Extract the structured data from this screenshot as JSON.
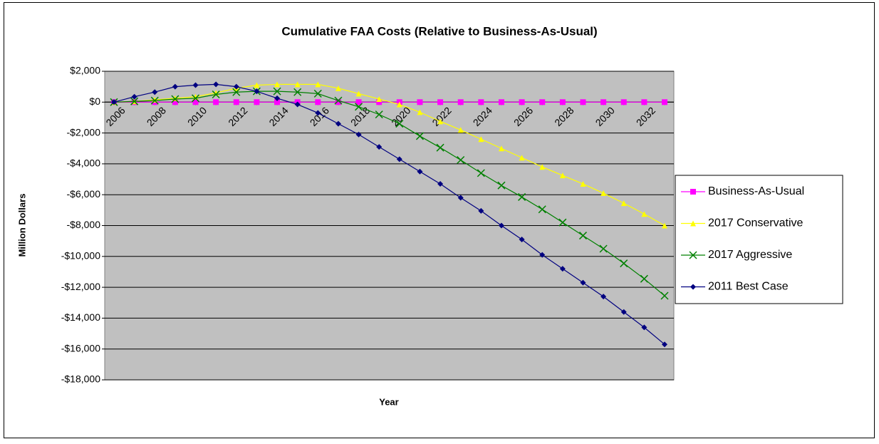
{
  "chart_data": {
    "type": "line",
    "title": "Cumulative FAA Costs (Relative to Business-As-Usual)",
    "x_label": "Year",
    "y_label": "Million Dollars",
    "categories": [
      "2006",
      null,
      "2008",
      null,
      "2010",
      null,
      "2012",
      null,
      "2014",
      null,
      "2016",
      null,
      "2018",
      null,
      "2020",
      null,
      "2022",
      null,
      "2024",
      null,
      "2026",
      null,
      "2028",
      null,
      "2030",
      null,
      "2032",
      null
    ],
    "series": [
      {
        "name": "Business-As-Usual",
        "color": "#ff00ff",
        "marker": "square",
        "values": [
          0,
          0,
          0,
          0,
          0,
          0,
          0,
          0,
          0,
          0,
          0,
          0,
          0,
          0,
          0,
          0,
          0,
          0,
          0,
          0,
          0,
          0,
          0,
          0,
          0,
          0,
          0,
          0
        ]
      },
      {
        "name": "2017 Conservative",
        "color": "#ffff00",
        "marker": "triangle",
        "values": [
          0,
          50,
          150,
          250,
          350,
          600,
          900,
          1100,
          1150,
          1150,
          1150,
          900,
          550,
          200,
          -150,
          -650,
          -1250,
          -1800,
          -2400,
          -3000,
          -3600,
          -4200,
          -4750,
          -5300,
          -5900,
          -6550,
          -7250,
          -8000
        ]
      },
      {
        "name": "2017 Aggressive",
        "color": "#008000",
        "marker": "cross",
        "values": [
          0,
          50,
          100,
          200,
          250,
          500,
          650,
          700,
          700,
          650,
          550,
          100,
          -300,
          -800,
          -1400,
          -2200,
          -2950,
          -3750,
          -4600,
          -5400,
          -6150,
          -6950,
          -7800,
          -8650,
          -9500,
          -10450,
          -11450,
          -12550
        ]
      },
      {
        "name": "2011 Best Case",
        "color": "#000080",
        "marker": "diamond",
        "values": [
          0,
          350,
          650,
          1000,
          1100,
          1150,
          1000,
          700,
          250,
          -150,
          -700,
          -1400,
          -2100,
          -2900,
          -3700,
          -4500,
          -5300,
          -6200,
          -7050,
          -8000,
          -8900,
          -9900,
          -10800,
          -11700,
          -12600,
          -13600,
          -14600,
          -15700
        ]
      }
    ],
    "ylim": [
      -18000,
      2000
    ],
    "yticks": [
      {
        "value": 2000,
        "label": "$2,000"
      },
      {
        "value": 0,
        "label": "$0"
      },
      {
        "value": -2000,
        "label": "-$2,000"
      },
      {
        "value": -4000,
        "label": "-$4,000"
      },
      {
        "value": -6000,
        "label": "-$6,000"
      },
      {
        "value": -8000,
        "label": "-$8,000"
      },
      {
        "value": -10000,
        "label": "-$10,000"
      },
      {
        "value": -12000,
        "label": "-$12,000"
      },
      {
        "value": -14000,
        "label": "-$14,000"
      },
      {
        "value": -16000,
        "label": "-$16,000"
      },
      {
        "value": -18000,
        "label": "-$18,000"
      }
    ],
    "grid": true,
    "legend": "right",
    "plot_background": "#c0c0c0"
  }
}
